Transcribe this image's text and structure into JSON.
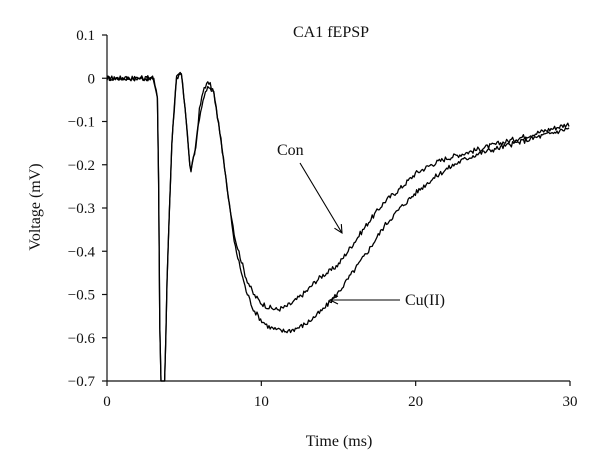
{
  "chart_data": {
    "type": "line",
    "title": "CA1 fEPSP",
    "xlabel": "Time (ms)",
    "ylabel": "Voltage (mV)",
    "xlim": [
      0,
      30
    ],
    "ylim": [
      -0.7,
      0.1
    ],
    "xticks": [
      0,
      10,
      20,
      30
    ],
    "yticks": [
      0.1,
      0,
      -0.1,
      -0.2,
      -0.3,
      -0.4,
      -0.5,
      -0.6,
      -0.7
    ],
    "xtick_labels": [
      "0",
      "10",
      "20",
      "30"
    ],
    "ytick_labels": [
      "0.1",
      "0",
      "−0.1",
      "−0.2",
      "−0.3",
      "−0.4",
      "−0.5",
      "−0.6",
      "−0.7"
    ],
    "grid": false,
    "legend": "none",
    "series": [
      {
        "name": "Con",
        "x": [
          0,
          1,
          2,
          3,
          3.3,
          3.45,
          3.6,
          3.75,
          3.9,
          4.2,
          4.5,
          4.8,
          5.1,
          5.4,
          5.7,
          6.0,
          6.3,
          6.6,
          6.9,
          7.3,
          7.8,
          8.3,
          9.0,
          9.5,
          10.0,
          10.5,
          11.0,
          11.5,
          12.0,
          12.5,
          13.0,
          13.5,
          14.0,
          14.5,
          15.0,
          15.5,
          16.0,
          17.0,
          18.0,
          19.0,
          20.0,
          21.0,
          22.0,
          23.0,
          24.0,
          25.0,
          26.0,
          27.0,
          28.0,
          29.0,
          30.0
        ],
        "y": [
          0.0,
          0.0,
          0.0,
          0.0,
          -0.05,
          -0.7,
          -0.7,
          -0.7,
          -0.45,
          -0.15,
          0.0,
          0.015,
          -0.08,
          -0.22,
          -0.17,
          -0.07,
          -0.02,
          -0.01,
          -0.03,
          -0.12,
          -0.26,
          -0.37,
          -0.46,
          -0.5,
          -0.52,
          -0.53,
          -0.535,
          -0.53,
          -0.52,
          -0.505,
          -0.49,
          -0.47,
          -0.455,
          -0.445,
          -0.43,
          -0.405,
          -0.38,
          -0.33,
          -0.285,
          -0.255,
          -0.22,
          -0.2,
          -0.185,
          -0.175,
          -0.165,
          -0.155,
          -0.145,
          -0.135,
          -0.125,
          -0.115,
          -0.105
        ]
      },
      {
        "name": "Cu(II)",
        "x": [
          0,
          1,
          2,
          3,
          3.3,
          3.45,
          3.6,
          3.75,
          3.9,
          4.2,
          4.5,
          4.8,
          5.1,
          5.4,
          5.7,
          6.0,
          6.3,
          6.6,
          6.9,
          7.3,
          7.8,
          8.3,
          9.0,
          9.5,
          10.0,
          10.5,
          11.0,
          11.5,
          12.0,
          12.5,
          13.0,
          13.5,
          14.0,
          14.5,
          15.0,
          15.5,
          16.0,
          17.0,
          18.0,
          19.0,
          20.0,
          21.0,
          22.0,
          23.0,
          24.0,
          25.0,
          26.0,
          27.0,
          28.0,
          29.0,
          30.0
        ],
        "y": [
          0.0,
          0.0,
          0.0,
          0.0,
          -0.05,
          -0.7,
          -0.7,
          -0.7,
          -0.45,
          -0.15,
          0.0,
          0.015,
          -0.08,
          -0.22,
          -0.17,
          -0.09,
          -0.04,
          -0.02,
          -0.03,
          -0.12,
          -0.26,
          -0.39,
          -0.49,
          -0.535,
          -0.56,
          -0.575,
          -0.582,
          -0.585,
          -0.582,
          -0.575,
          -0.565,
          -0.55,
          -0.535,
          -0.515,
          -0.495,
          -0.47,
          -0.445,
          -0.395,
          -0.34,
          -0.3,
          -0.265,
          -0.235,
          -0.21,
          -0.19,
          -0.175,
          -0.165,
          -0.155,
          -0.145,
          -0.135,
          -0.125,
          -0.115
        ]
      }
    ],
    "annotations": [
      {
        "text": "Con",
        "target_series": "Con"
      },
      {
        "text": "Cu(II)",
        "target_series": "Cu(II)"
      }
    ]
  }
}
